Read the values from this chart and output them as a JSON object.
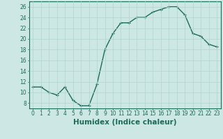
{
  "x": [
    0,
    1,
    2,
    3,
    4,
    5,
    6,
    7,
    8,
    9,
    10,
    11,
    12,
    13,
    14,
    15,
    16,
    17,
    18,
    19,
    20,
    21,
    22,
    23
  ],
  "y": [
    11,
    11,
    10,
    9.5,
    11,
    8.5,
    7.5,
    7.5,
    11.5,
    18,
    21,
    23,
    23,
    24,
    24,
    25,
    25.5,
    26,
    26,
    24.5,
    21,
    20.5,
    19,
    18.5
  ],
  "line_color": "#1a6b5a",
  "marker": "+",
  "marker_size": 3,
  "marker_linewidth": 0.8,
  "line_width": 1.0,
  "bg_color": "#cde8e4",
  "grid_color": "#afd4ce",
  "xlabel": "Humidex (Indice chaleur)",
  "xlabel_fontsize": 7.5,
  "xlim": [
    -0.5,
    23.5
  ],
  "ylim": [
    7,
    27
  ],
  "yticks": [
    8,
    10,
    12,
    14,
    16,
    18,
    20,
    22,
    24,
    26
  ],
  "xticks": [
    0,
    1,
    2,
    3,
    4,
    5,
    6,
    7,
    8,
    9,
    10,
    11,
    12,
    13,
    14,
    15,
    16,
    17,
    18,
    19,
    20,
    21,
    22,
    23
  ],
  "tick_label_fontsize": 5.5,
  "tick_color": "#1a6b5a",
  "axis_color": "#1a6b5a"
}
